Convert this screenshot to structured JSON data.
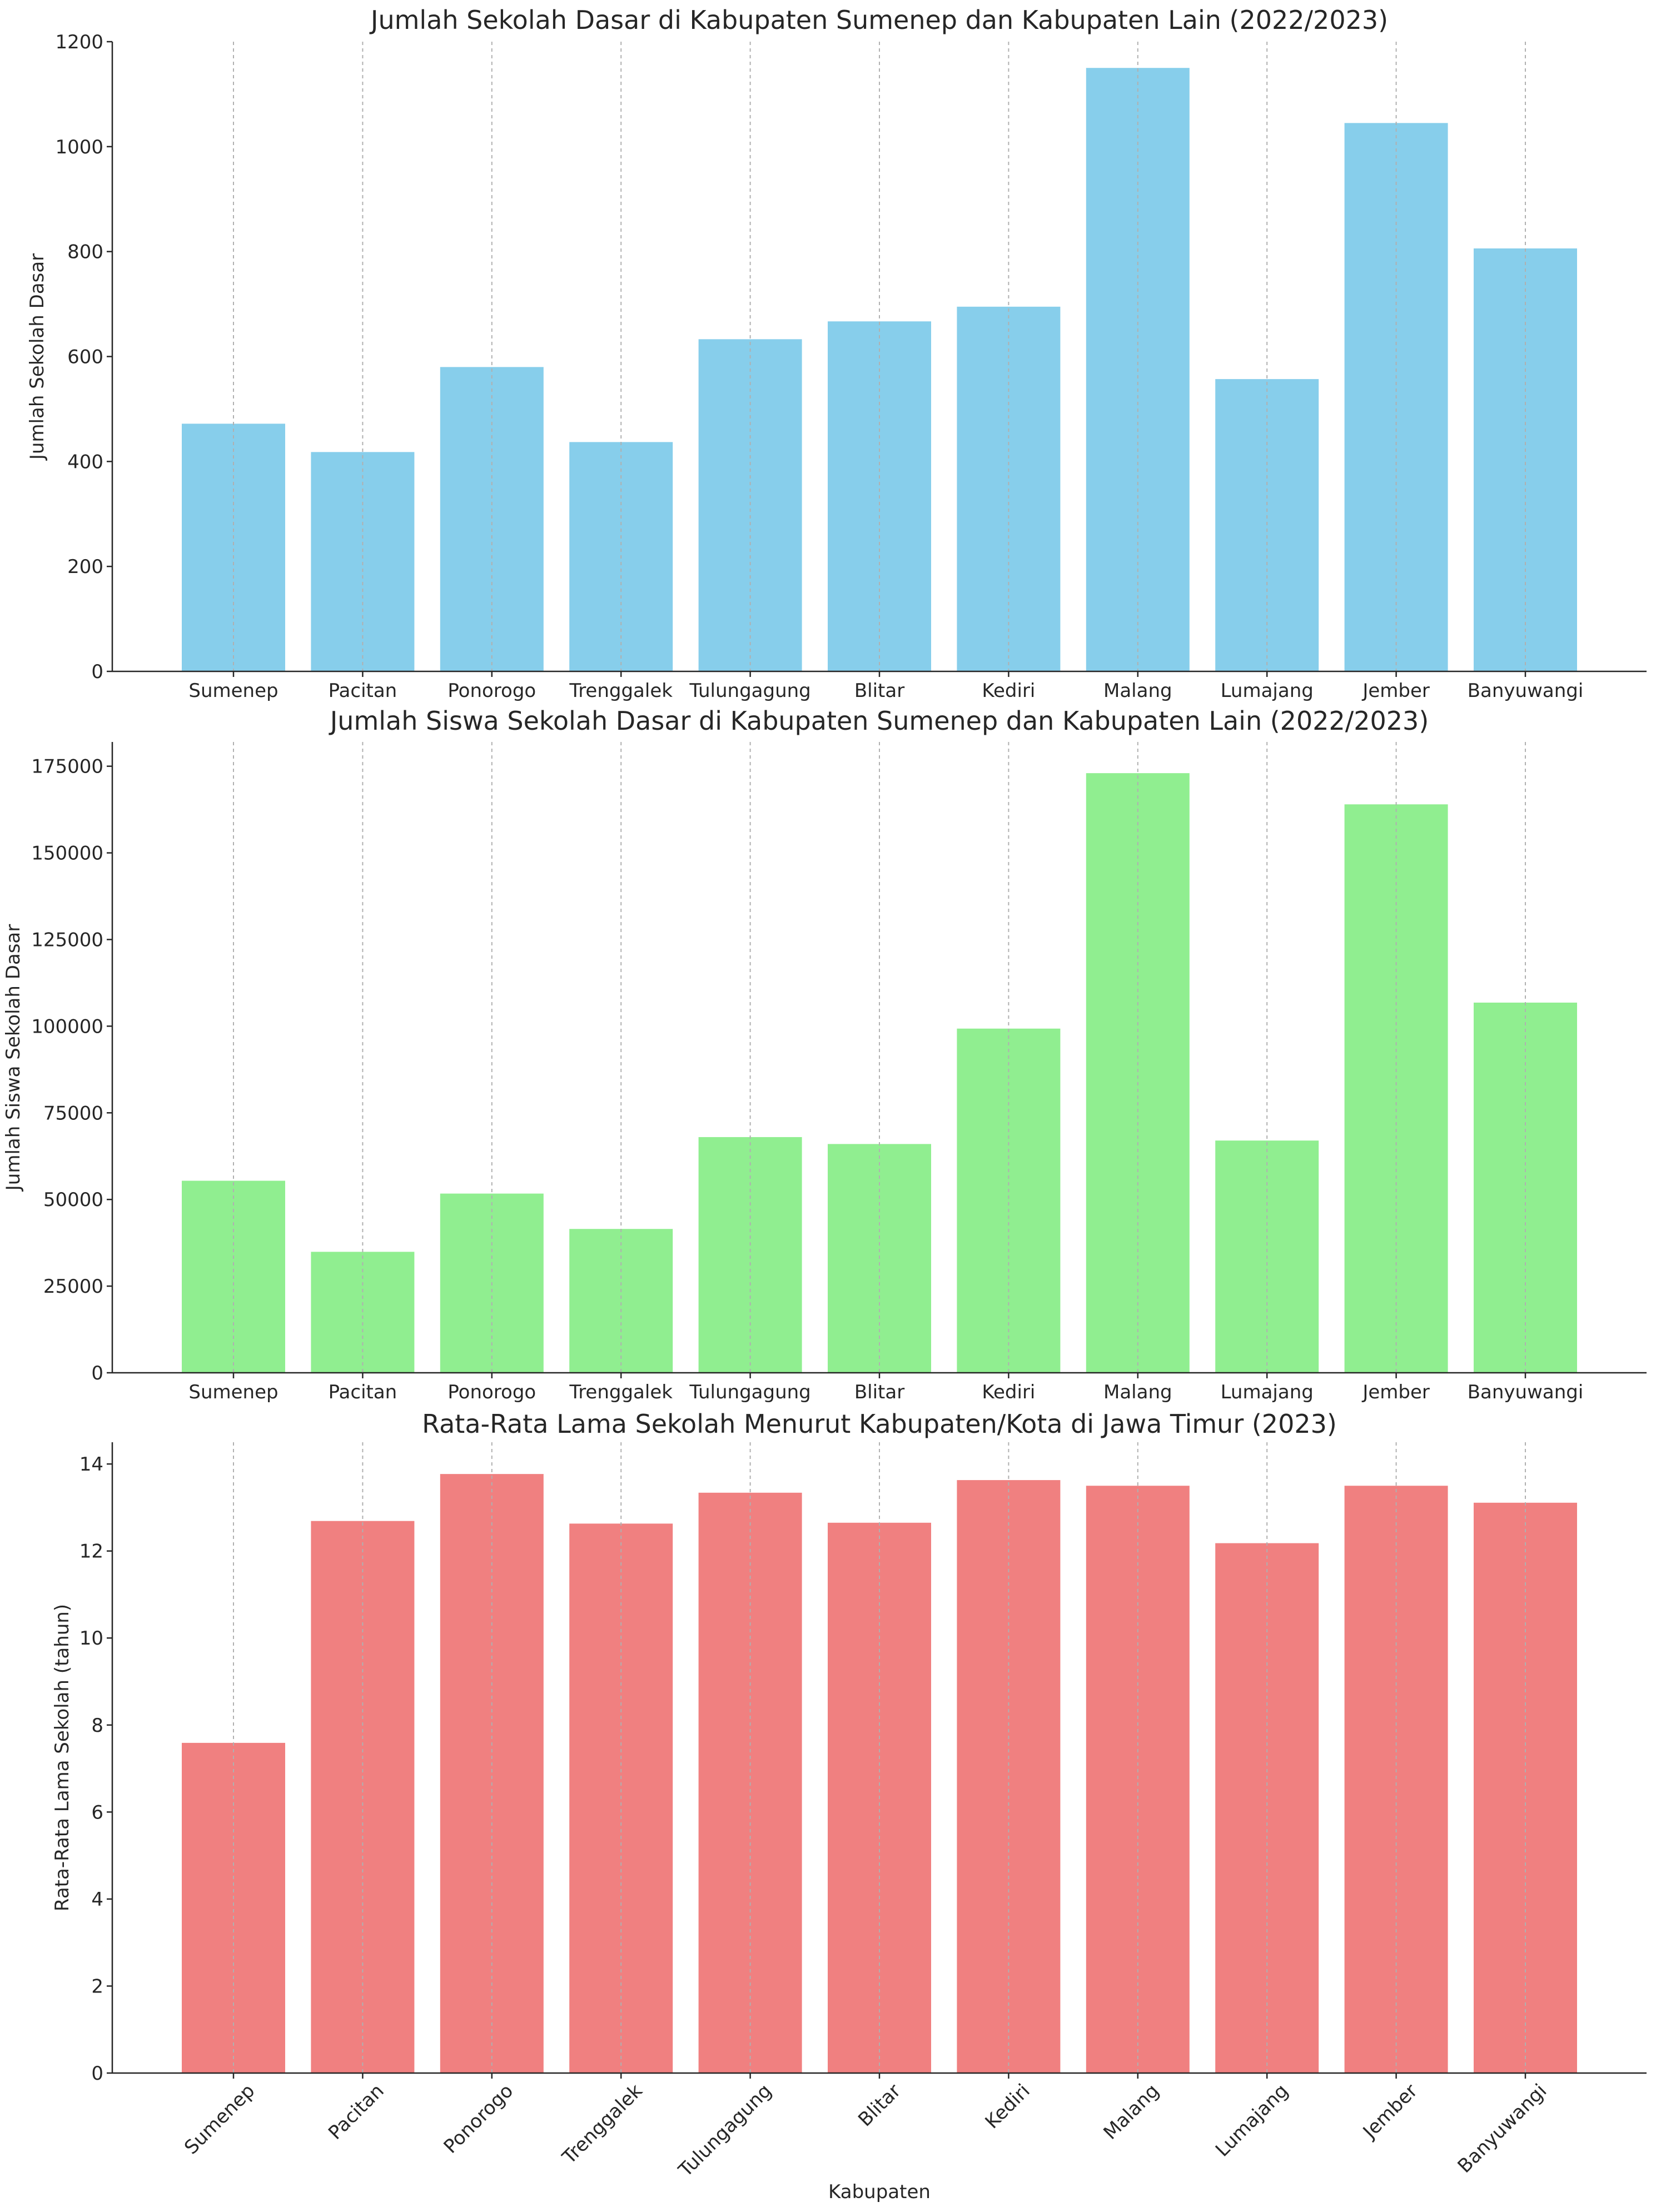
{
  "chart_data": [
    {
      "type": "bar",
      "title": "Jumlah Sekolah Dasar di Kabupaten Sumenep dan Kabupaten Lain (2022/2023)",
      "xlabel": "",
      "ylabel": "Jumlah Sekolah Dasar",
      "categories": [
        "Sumenep",
        "Pacitan",
        "Ponorogo",
        "Trenggalek",
        "Tulungagung",
        "Blitar",
        "Kediri",
        "Malang",
        "Lumajang",
        "Jember",
        "Banyuwangi"
      ],
      "values": [
        472,
        418,
        580,
        437,
        633,
        667,
        695,
        1150,
        557,
        1045,
        806
      ],
      "color": "#87ceeb",
      "ylim": [
        0,
        1200
      ],
      "yticks": [
        0,
        200,
        400,
        600,
        800,
        1000,
        1200
      ],
      "grid": "x-dashed",
      "rotate_xticks": false
    },
    {
      "type": "bar",
      "title": "Jumlah Siswa Sekolah Dasar di Kabupaten Sumenep dan Kabupaten Lain (2022/2023)",
      "xlabel": "",
      "ylabel": "Jumlah Siswa Sekolah Dasar",
      "categories": [
        "Sumenep",
        "Pacitan",
        "Ponorogo",
        "Trenggalek",
        "Tulungagung",
        "Blitar",
        "Kediri",
        "Malang",
        "Lumajang",
        "Jember",
        "Banyuwangi"
      ],
      "values": [
        55400,
        34900,
        51700,
        41500,
        68000,
        66000,
        99300,
        173000,
        67000,
        164000,
        106800
      ],
      "color": "#90ee90",
      "ylim": [
        0,
        182000
      ],
      "yticks": [
        0,
        25000,
        50000,
        75000,
        100000,
        125000,
        150000,
        175000
      ],
      "grid": "x-dashed",
      "rotate_xticks": false
    },
    {
      "type": "bar",
      "title": "Rata-Rata Lama Sekolah Menurut Kabupaten/Kota di Jawa Timur (2023)",
      "xlabel": "Kabupaten",
      "ylabel": "Rata-Rata Lama Sekolah (tahun)",
      "categories": [
        "Sumenep",
        "Pacitan",
        "Ponorogo",
        "Trenggalek",
        "Tulungagung",
        "Blitar",
        "Kediri",
        "Malang",
        "Lumajang",
        "Jember",
        "Banyuwangi"
      ],
      "values": [
        7.59,
        12.69,
        13.77,
        12.63,
        13.34,
        12.65,
        13.63,
        13.5,
        12.18,
        13.5,
        13.11
      ],
      "color": "#f08080",
      "ylim": [
        0,
        14.5
      ],
      "yticks": [
        0,
        2,
        4,
        6,
        8,
        10,
        12,
        14
      ],
      "grid": "x-dashed",
      "rotate_xticks": true
    }
  ]
}
